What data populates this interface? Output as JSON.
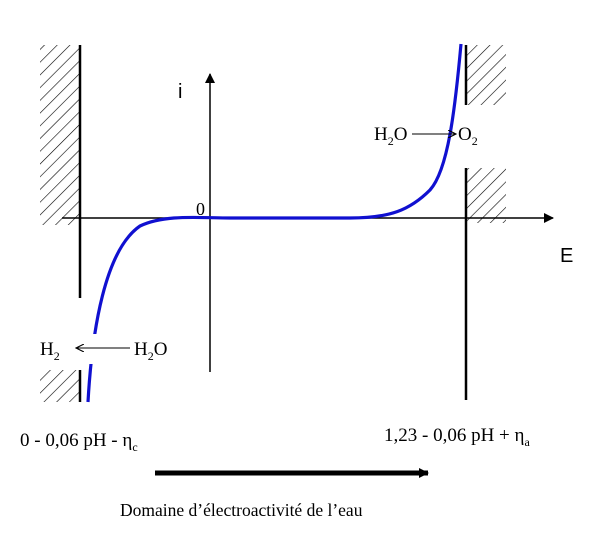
{
  "axes": {
    "y_label": "i",
    "x_label": "E",
    "origin_label": "0"
  },
  "reactions": {
    "oxidation": {
      "reactant": "H",
      "reactant_sub": "2",
      "reactant_tail": "O",
      "product": "O",
      "product_sub": "2"
    },
    "reduction": {
      "product": "H",
      "product_sub": "2",
      "reactant": "H",
      "reactant_sub": "2",
      "reactant_tail": "O"
    }
  },
  "limits": {
    "cathodic": {
      "text": "0 - 0,06 pH - η",
      "sub": "c"
    },
    "anodic": {
      "text": "1,23 - 0,06 pH + η",
      "sub": "a"
    }
  },
  "domain_label": "Domaine d’électroactivité de l’eau",
  "colors": {
    "curve": "#1010d0",
    "ink": "#000000"
  }
}
